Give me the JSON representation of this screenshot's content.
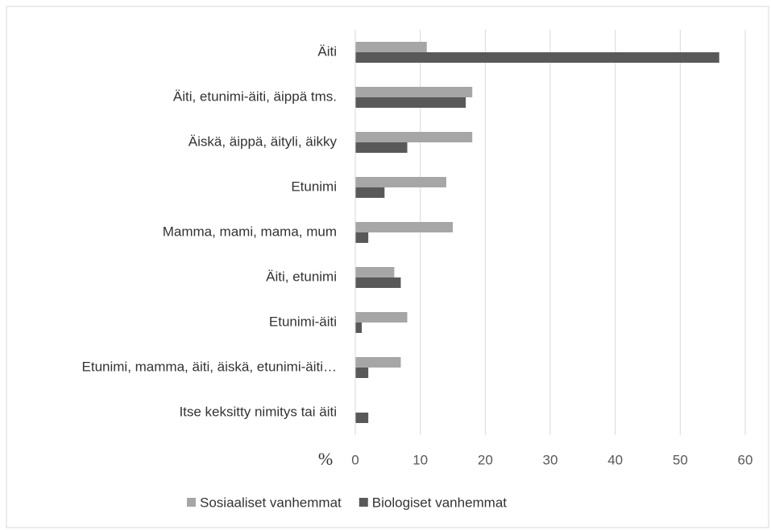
{
  "chart_data": {
    "type": "hbar",
    "x_label": "%",
    "categories": [
      "Äiti",
      "Äiti, etunimi-äiti, äippä tms.",
      "Äiskä, äippä, äityli, äikky",
      "Etunimi",
      "Mamma, mami, mama, mum",
      "Äiti, etunimi",
      "Etunimi-äiti",
      "Etunimi, mamma, äiti, äiskä, etunimi-äiti…",
      "Itse keksitty nimitys tai äiti"
    ],
    "series": [
      {
        "name": "Sosiaaliset vanhemmat",
        "color": "#a6a6a6",
        "values": [
          11,
          18,
          18,
          14,
          15,
          6,
          8,
          7,
          0
        ]
      },
      {
        "name": "Biologiset vanhemmat",
        "color": "#595959",
        "values": [
          56,
          17,
          8,
          4.5,
          2,
          7,
          1,
          2,
          2
        ]
      }
    ],
    "xlim": [
      0,
      60
    ],
    "xticks": [
      0,
      10,
      20,
      30,
      40,
      50,
      60
    ],
    "grid": true,
    "legend": "bottom"
  }
}
